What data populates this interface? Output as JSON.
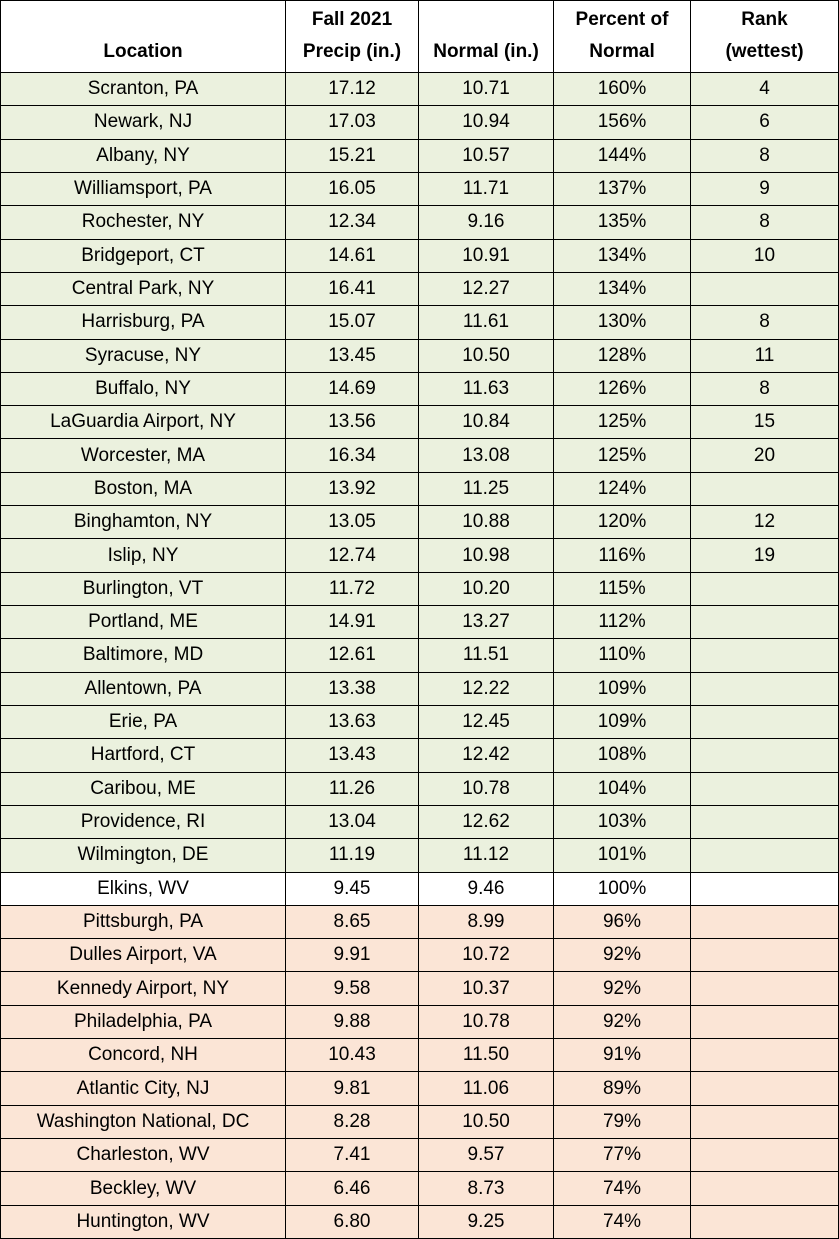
{
  "table": {
    "header": [
      [
        "Location"
      ],
      [
        "Fall 2021",
        "Precip (in.)"
      ],
      [
        "Normal (in.)"
      ],
      [
        "Percent of",
        "Normal"
      ],
      [
        "Rank",
        "(wettest)"
      ]
    ],
    "rows": [
      {
        "fill": "#ebf1de",
        "cells": [
          "Scranton, PA",
          "17.12",
          "10.71",
          "160%",
          "4"
        ]
      },
      {
        "fill": "#ebf1de",
        "cells": [
          "Newark, NJ",
          "17.03",
          "10.94",
          "156%",
          "6"
        ]
      },
      {
        "fill": "#ebf1de",
        "cells": [
          "Albany, NY",
          "15.21",
          "10.57",
          "144%",
          "8"
        ]
      },
      {
        "fill": "#ebf1de",
        "cells": [
          "Williamsport, PA",
          "16.05",
          "11.71",
          "137%",
          "9"
        ]
      },
      {
        "fill": "#ebf1de",
        "cells": [
          "Rochester, NY",
          "12.34",
          "9.16",
          "135%",
          "8"
        ]
      },
      {
        "fill": "#ebf1de",
        "cells": [
          "Bridgeport, CT",
          "14.61",
          "10.91",
          "134%",
          "10"
        ]
      },
      {
        "fill": "#ebf1de",
        "cells": [
          "Central Park, NY",
          "16.41",
          "12.27",
          "134%",
          null
        ]
      },
      {
        "fill": "#ebf1de",
        "cells": [
          "Harrisburg, PA",
          "15.07",
          "11.61",
          "130%",
          "8"
        ]
      },
      {
        "fill": "#ebf1de",
        "cells": [
          "Syracuse, NY",
          "13.45",
          "10.50",
          "128%",
          "11"
        ]
      },
      {
        "fill": "#ebf1de",
        "cells": [
          "Buffalo, NY",
          "14.69",
          "11.63",
          "126%",
          "8"
        ]
      },
      {
        "fill": "#ebf1de",
        "cells": [
          "LaGuardia Airport, NY",
          "13.56",
          "10.84",
          "125%",
          "15"
        ]
      },
      {
        "fill": "#ebf1de",
        "cells": [
          "Worcester, MA",
          "16.34",
          "13.08",
          "125%",
          "20"
        ]
      },
      {
        "fill": "#ebf1de",
        "cells": [
          "Boston, MA",
          "13.92",
          "11.25",
          "124%",
          null
        ]
      },
      {
        "fill": "#ebf1de",
        "cells": [
          "Binghamton, NY",
          "13.05",
          "10.88",
          "120%",
          "12"
        ]
      },
      {
        "fill": "#ebf1de",
        "cells": [
          "Islip, NY",
          "12.74",
          "10.98",
          "116%",
          "19"
        ]
      },
      {
        "fill": "#ebf1de",
        "cells": [
          "Burlington, VT",
          "11.72",
          "10.20",
          "115%",
          null
        ]
      },
      {
        "fill": "#ebf1de",
        "cells": [
          "Portland, ME",
          "14.91",
          "13.27",
          "112%",
          null
        ]
      },
      {
        "fill": "#ebf1de",
        "cells": [
          "Baltimore, MD",
          "12.61",
          "11.51",
          "110%",
          null
        ]
      },
      {
        "fill": "#ebf1de",
        "cells": [
          "Allentown, PA",
          "13.38",
          "12.22",
          "109%",
          null
        ]
      },
      {
        "fill": "#ebf1de",
        "cells": [
          "Erie, PA",
          "13.63",
          "12.45",
          "109%",
          null
        ]
      },
      {
        "fill": "#ebf1de",
        "cells": [
          "Hartford, CT",
          "13.43",
          "12.42",
          "108%",
          null
        ]
      },
      {
        "fill": "#ebf1de",
        "cells": [
          "Caribou, ME",
          "11.26",
          "10.78",
          "104%",
          null
        ]
      },
      {
        "fill": "#ebf1de",
        "cells": [
          "Providence, RI",
          "13.04",
          "12.62",
          "103%",
          null
        ]
      },
      {
        "fill": "#ebf1de",
        "cells": [
          "Wilmington, DE",
          "11.19",
          "11.12",
          "101%",
          null
        ]
      },
      {
        "fill": "#ffffff",
        "cells": [
          "Elkins, WV",
          "9.45",
          "9.46",
          "100%",
          null
        ]
      },
      {
        "fill": "#fbe5d6",
        "cells": [
          "Pittsburgh, PA",
          "8.65",
          "8.99",
          "96%",
          null
        ]
      },
      {
        "fill": "#fbe5d6",
        "cells": [
          "Dulles Airport, VA",
          "9.91",
          "10.72",
          "92%",
          null
        ]
      },
      {
        "fill": "#fbe5d6",
        "cells": [
          "Kennedy Airport, NY",
          "9.58",
          "10.37",
          "92%",
          null
        ]
      },
      {
        "fill": "#fbe5d6",
        "cells": [
          "Philadelphia, PA",
          "9.88",
          "10.78",
          "92%",
          null
        ]
      },
      {
        "fill": "#fbe5d6",
        "cells": [
          "Concord, NH",
          "10.43",
          "11.50",
          "91%",
          null
        ]
      },
      {
        "fill": "#fbe5d6",
        "cells": [
          "Atlantic City, NJ",
          "9.81",
          "11.06",
          "89%",
          null
        ]
      },
      {
        "fill": "#fbe5d6",
        "cells": [
          "Washington National, DC",
          "8.28",
          "10.50",
          "79%",
          null
        ]
      },
      {
        "fill": "#fbe5d6",
        "cells": [
          "Charleston, WV",
          "7.41",
          "9.57",
          "77%",
          null
        ]
      },
      {
        "fill": "#fbe5d6",
        "cells": [
          "Beckley, WV",
          "6.46",
          "8.73",
          "74%",
          null
        ]
      },
      {
        "fill": "#fbe5d6",
        "cells": [
          "Huntington, WV",
          "6.80",
          "9.25",
          "74%",
          null
        ]
      }
    ]
  }
}
